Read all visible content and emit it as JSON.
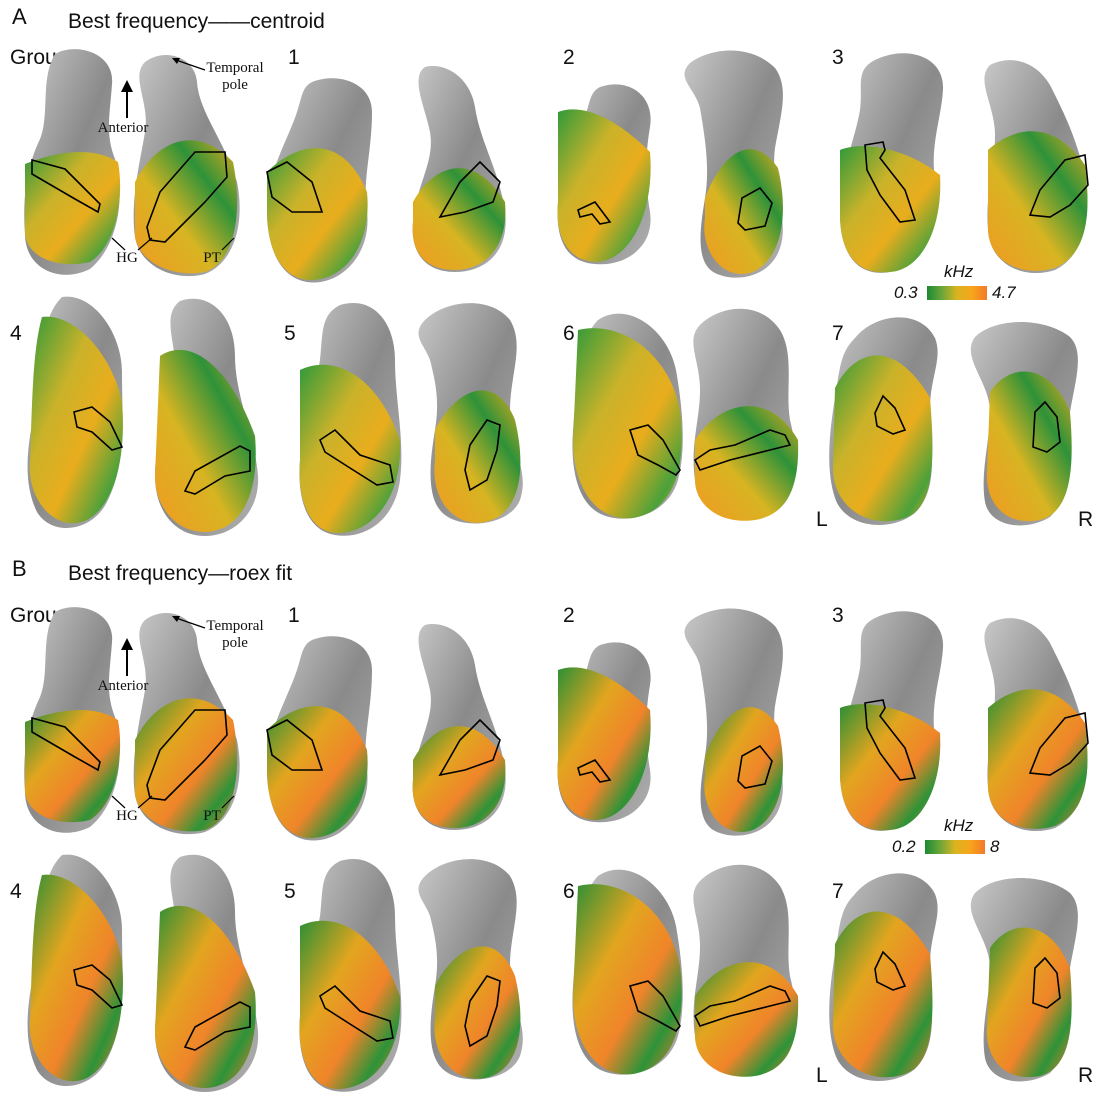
{
  "panels": [
    {
      "letter": "A",
      "title": "Best frequency——centroid",
      "subjects": [
        "Group",
        "1",
        "2",
        "3",
        "4",
        "5",
        "6",
        "7"
      ],
      "annotations": {
        "temporal_pole": "Temporal\npole",
        "anterior": "Anterior",
        "hg": "HG",
        "pt": "PT"
      },
      "colorbar": {
        "unit": "kHz",
        "min": "0.3",
        "max": "4.7"
      },
      "hemisphere_labels": {
        "left": "L",
        "right": "R"
      }
    },
    {
      "letter": "B",
      "title": "Best frequency—roex fit",
      "subjects": [
        "Group",
        "1",
        "2",
        "3",
        "4",
        "5",
        "6",
        "7"
      ],
      "annotations": {
        "temporal_pole": "Temporal\npole",
        "anterior": "Anterior",
        "hg": "HG",
        "pt": "PT"
      },
      "colorbar": {
        "unit": "kHz",
        "min": "0.2",
        "max": "8"
      },
      "hemisphere_labels": {
        "left": "L",
        "right": "R"
      }
    }
  ],
  "colors": {
    "low": "#1b8a33",
    "mid": "#d9b41f",
    "high": "#f3792a",
    "cortex_gray": "#8c8c8c"
  }
}
